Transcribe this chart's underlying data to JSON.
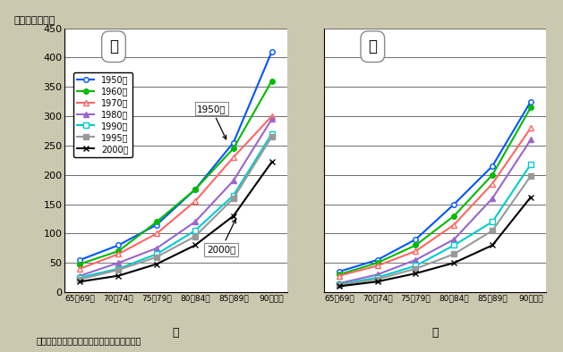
{
  "ylabel": "（人口千人対）",
  "xlabel_male": "男",
  "xlabel_female": "女",
  "source": "資料：厚生労働省「人口動態統計」より作成",
  "label_male": "男",
  "label_female": "女",
  "age_groups": [
    "65～69歳",
    "70～74歳",
    "75～79歳",
    "80～84歳",
    "85～89歳",
    "90歳以上"
  ],
  "ylim": [
    0,
    450
  ],
  "yticks": [
    0,
    50,
    100,
    150,
    200,
    250,
    300,
    350,
    400,
    450
  ],
  "series": [
    {
      "label": "1950年",
      "color": "#0055FF",
      "marker": "o",
      "markerfacecolor": "white",
      "male": [
        55,
        80,
        115,
        175,
        255,
        410
      ],
      "female": [
        35,
        55,
        90,
        150,
        215,
        325
      ]
    },
    {
      "label": "1960年",
      "color": "#00BB00",
      "marker": "o",
      "markerfacecolor": "#00BB00",
      "male": [
        48,
        70,
        120,
        175,
        245,
        360
      ],
      "female": [
        30,
        50,
        80,
        130,
        200,
        315
      ]
    },
    {
      "label": "1970年",
      "color": "#FF6666",
      "marker": "^",
      "markerfacecolor": "white",
      "male": [
        40,
        65,
        100,
        155,
        230,
        300
      ],
      "female": [
        28,
        45,
        70,
        115,
        185,
        280
      ]
    },
    {
      "label": "1980年",
      "color": "#9966CC",
      "marker": "^",
      "markerfacecolor": "#9966CC",
      "male": [
        28,
        50,
        75,
        120,
        190,
        295
      ],
      "female": [
        15,
        30,
        55,
        90,
        160,
        260
      ]
    },
    {
      "label": "1990年",
      "color": "#00CCCC",
      "marker": "s",
      "markerfacecolor": "white",
      "male": [
        25,
        40,
        65,
        105,
        165,
        270
      ],
      "female": [
        13,
        25,
        45,
        80,
        120,
        218
      ]
    },
    {
      "label": "1995年",
      "color": "#999999",
      "marker": "s",
      "markerfacecolor": "#999999",
      "male": [
        22,
        38,
        60,
        95,
        160,
        265
      ],
      "female": [
        12,
        22,
        40,
        65,
        105,
        198
      ]
    },
    {
      "label": "2000年",
      "color": "#000000",
      "marker": "x",
      "markerfacecolor": "#000000",
      "male": [
        18,
        28,
        48,
        80,
        130,
        222
      ],
      "female": [
        10,
        18,
        32,
        50,
        80,
        162
      ]
    }
  ],
  "bg_color": "#ccc8b0",
  "plot_bg": "#ffffff",
  "ann_1950_label": "1950年",
  "ann_2000_label": "2000年"
}
